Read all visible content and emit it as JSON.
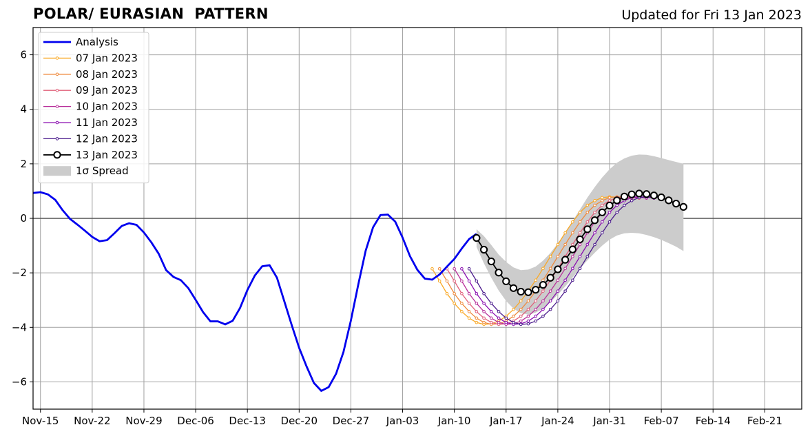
{
  "chart_data": {
    "type": "line",
    "title": "POLAR/ EURASIAN  PATTERN",
    "subtitle": "Updated for Fri 13 Jan 2023",
    "xlabel": "",
    "ylabel": "",
    "x_axis": {
      "start_date": "2022-11-14",
      "range_days": [
        0,
        104
      ],
      "tick_labels": [
        "Nov-15",
        "Nov-22",
        "Nov-29",
        "Dec-06",
        "Dec-13",
        "Dec-20",
        "Dec-27",
        "Jan-03",
        "Jan-10",
        "Jan-17",
        "Jan-24",
        "Jan-31",
        "Feb-07",
        "Feb-14",
        "Feb-21"
      ],
      "tick_days": [
        1,
        8,
        15,
        22,
        29,
        36,
        43,
        50,
        57,
        64,
        71,
        78,
        85,
        92,
        99
      ]
    },
    "ylim": [
      -7,
      7
    ],
    "yticks": [
      -6,
      -4,
      -2,
      0,
      2,
      4,
      6
    ],
    "ytick_labels": [
      "−6",
      "−4",
      "−2",
      "0",
      "2",
      "4",
      "6"
    ],
    "grid": true,
    "legend_position": "top-left",
    "colors": {
      "analysis": "#0000ee",
      "f07": "#f9a825",
      "f08": "#ef8a3c",
      "f09": "#e0607a",
      "f10": "#b8309a",
      "f11": "#8a0fb0",
      "f12": "#4a1a8c",
      "f13": "#000000",
      "spread": "#cccccc",
      "grid": "#a0a0a0",
      "zero": "#555555"
    },
    "analysis": {
      "name": "Analysis",
      "start_day": 0,
      "values": [
        0.93,
        0.96,
        0.88,
        0.68,
        0.3,
        -0.02,
        -0.23,
        -0.45,
        -0.68,
        -0.84,
        -0.8,
        -0.55,
        -0.28,
        -0.18,
        -0.24,
        -0.52,
        -0.88,
        -1.3,
        -1.9,
        -2.15,
        -2.27,
        -2.56,
        -2.99,
        -3.44,
        -3.78,
        -3.78,
        -3.89,
        -3.76,
        -3.29,
        -2.63,
        -2.1,
        -1.76,
        -1.72,
        -2.18,
        -3.05,
        -3.92,
        -4.75,
        -5.43,
        -6.04,
        -6.33,
        -6.19,
        -5.7,
        -4.9,
        -3.75,
        -2.43,
        -1.19,
        -0.33,
        0.12,
        0.14,
        -0.12,
        -0.71,
        -1.39,
        -1.89,
        -2.21,
        -2.25,
        -2.06,
        -1.77,
        -1.49,
        -1.11,
        -0.76,
        -0.57
      ]
    },
    "forecasts": [
      {
        "name": "07 Jan 2023",
        "color_key": "f07",
        "start_day": 54,
        "values": [
          -1.85,
          -2.3,
          -2.76,
          -3.12,
          -3.42,
          -3.66,
          -3.82,
          -3.89,
          -3.87,
          -3.77,
          -3.59,
          -3.34,
          -3.03,
          -2.67,
          -2.27,
          -1.84,
          -1.4,
          -0.96,
          -0.53,
          -0.13,
          0.22,
          0.48,
          0.65,
          0.76,
          0.79,
          0.78,
          0.74
        ]
      },
      {
        "name": "08 Jan 2023",
        "color_key": "f08",
        "start_day": 55,
        "values": [
          -1.85,
          -2.3,
          -2.76,
          -3.12,
          -3.42,
          -3.66,
          -3.82,
          -3.89,
          -3.87,
          -3.77,
          -3.59,
          -3.34,
          -3.03,
          -2.67,
          -2.27,
          -1.84,
          -1.4,
          -0.96,
          -0.53,
          -0.13,
          0.22,
          0.48,
          0.65,
          0.76,
          0.79,
          0.78,
          0.74
        ]
      },
      {
        "name": "09 Jan 2023",
        "color_key": "f09",
        "start_day": 56,
        "values": [
          -1.85,
          -2.3,
          -2.76,
          -3.12,
          -3.42,
          -3.66,
          -3.82,
          -3.89,
          -3.87,
          -3.77,
          -3.59,
          -3.34,
          -3.03,
          -2.67,
          -2.27,
          -1.84,
          -1.4,
          -0.96,
          -0.53,
          -0.13,
          0.22,
          0.48,
          0.65,
          0.76,
          0.79,
          0.78,
          0.74
        ]
      },
      {
        "name": "10 Jan 2023",
        "color_key": "f10",
        "start_day": 57,
        "values": [
          -1.85,
          -2.3,
          -2.76,
          -3.12,
          -3.42,
          -3.66,
          -3.82,
          -3.89,
          -3.87,
          -3.77,
          -3.59,
          -3.34,
          -3.03,
          -2.67,
          -2.27,
          -1.84,
          -1.4,
          -0.96,
          -0.53,
          -0.13,
          0.22,
          0.48,
          0.65,
          0.76,
          0.79,
          0.78,
          0.74
        ]
      },
      {
        "name": "11 Jan 2023",
        "color_key": "f11",
        "start_day": 58,
        "values": [
          -1.85,
          -2.3,
          -2.76,
          -3.12,
          -3.42,
          -3.66,
          -3.82,
          -3.89,
          -3.87,
          -3.77,
          -3.59,
          -3.34,
          -3.03,
          -2.67,
          -2.27,
          -1.84,
          -1.4,
          -0.96,
          -0.53,
          -0.13,
          0.22,
          0.48,
          0.65,
          0.76,
          0.79,
          0.78,
          0.74
        ]
      },
      {
        "name": "12 Jan 2023",
        "color_key": "f12",
        "start_day": 59,
        "values": [
          -1.85,
          -2.3,
          -2.76,
          -3.12,
          -3.42,
          -3.66,
          -3.82,
          -3.89,
          -3.87,
          -3.77,
          -3.59,
          -3.34,
          -3.03,
          -2.67,
          -2.27,
          -1.84,
          -1.4,
          -0.96,
          -0.53,
          -0.13,
          0.22,
          0.48,
          0.65,
          0.76,
          0.79,
          0.78,
          0.74
        ]
      },
      {
        "name": "13 Jan 2023",
        "color_key": "f13",
        "start_day": 60,
        "values": [
          -0.72,
          -1.15,
          -1.58,
          -1.99,
          -2.31,
          -2.56,
          -2.69,
          -2.71,
          -2.62,
          -2.44,
          -2.18,
          -1.87,
          -1.52,
          -1.14,
          -0.77,
          -0.4,
          -0.07,
          0.22,
          0.47,
          0.66,
          0.8,
          0.88,
          0.91,
          0.89,
          0.84,
          0.77,
          0.66,
          0.54,
          0.42
        ]
      }
    ],
    "spread": {
      "name": "1σ Spread",
      "start_day": 60,
      "upper": [
        -0.4,
        -0.65,
        -0.98,
        -1.33,
        -1.6,
        -1.8,
        -1.9,
        -1.88,
        -1.77,
        -1.55,
        -1.27,
        -0.92,
        -0.53,
        -0.1,
        0.33,
        0.76,
        1.15,
        1.5,
        1.8,
        2.04,
        2.2,
        2.3,
        2.34,
        2.33,
        2.28,
        2.21,
        2.14,
        2.07,
        2.0
      ],
      "lower": [
        -1.05,
        -1.65,
        -2.18,
        -2.65,
        -3.03,
        -3.31,
        -3.48,
        -3.53,
        -3.46,
        -3.32,
        -3.08,
        -2.8,
        -2.5,
        -2.17,
        -1.84,
        -1.54,
        -1.26,
        -1.0,
        -0.78,
        -0.63,
        -0.55,
        -0.53,
        -0.55,
        -0.61,
        -0.69,
        -0.79,
        -0.91,
        -1.04,
        -1.2
      ]
    }
  },
  "legend": {
    "items": [
      {
        "label": "Analysis",
        "color_key": "analysis",
        "kind": "thick-line"
      },
      {
        "label": "07 Jan 2023",
        "color_key": "f07",
        "kind": "line-dot"
      },
      {
        "label": "08 Jan 2023",
        "color_key": "f08",
        "kind": "line-dot"
      },
      {
        "label": "09 Jan 2023",
        "color_key": "f09",
        "kind": "line-dot"
      },
      {
        "label": "10 Jan 2023",
        "color_key": "f10",
        "kind": "line-dot"
      },
      {
        "label": "11 Jan 2023",
        "color_key": "f11",
        "kind": "line-dot"
      },
      {
        "label": "12 Jan 2023",
        "color_key": "f12",
        "kind": "line-dot"
      },
      {
        "label": "13 Jan 2023",
        "color_key": "f13",
        "kind": "line-circle"
      },
      {
        "label": "1σ Spread",
        "color_key": "spread",
        "kind": "patch"
      }
    ]
  }
}
